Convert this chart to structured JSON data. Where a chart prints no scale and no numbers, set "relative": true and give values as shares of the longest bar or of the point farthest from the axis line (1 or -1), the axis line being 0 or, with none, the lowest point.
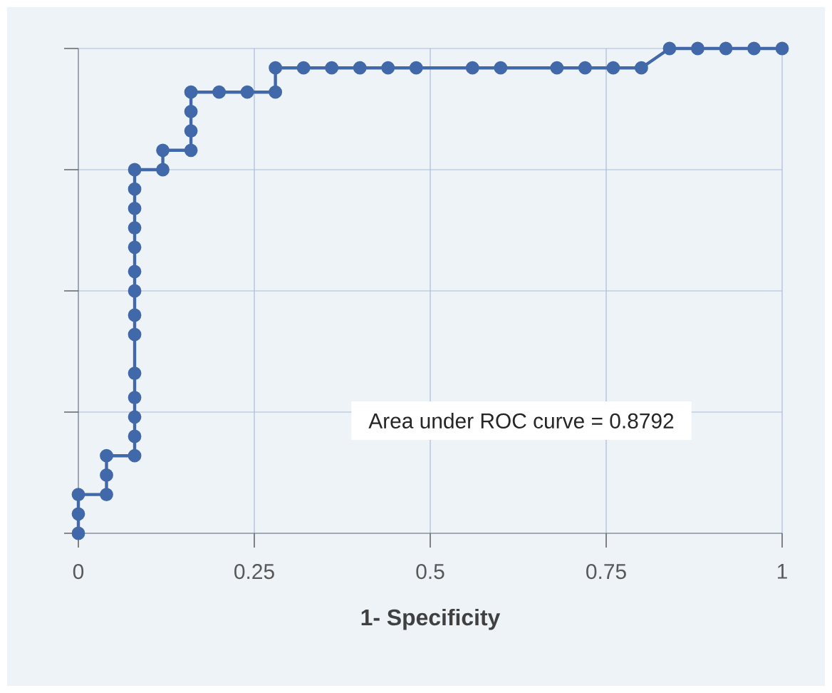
{
  "chart_data": {
    "type": "line",
    "xlabel": "1- Specificity",
    "relative": true,
    "xlim": [
      0,
      1
    ],
    "xticks": [
      0,
      0.25,
      0.5,
      0.75,
      1
    ],
    "tick_labels": "x",
    "grid": true,
    "marker": "circle",
    "line_style": "solid",
    "annotations": [
      "Area under ROC curve = 0.8792"
    ],
    "series": [
      {
        "color": "#4169aa",
        "x": [
          0,
          0,
          0,
          0.04,
          0.04,
          0.04,
          0.08,
          0.08,
          0.08,
          0.08,
          0.08,
          0.08,
          0.08,
          0.08,
          0.08,
          0.08,
          0.08,
          0.08,
          0.08,
          0.08,
          0.12,
          0.12,
          0.16,
          0.16,
          0.16,
          0.16,
          0.2,
          0.24,
          0.28,
          0.28,
          0.32,
          0.36,
          0.4,
          0.44,
          0.48,
          0.56,
          0.6,
          0.68,
          0.72,
          0.76,
          0.8,
          0.84,
          0.88,
          0.92,
          0.96,
          1
        ],
        "values": [
          0,
          0.04,
          0.08,
          0.08,
          0.12,
          0.16,
          0.16,
          0.2,
          0.24,
          0.28,
          0.33,
          0.41,
          0.45,
          0.5,
          0.54,
          0.59,
          0.63,
          0.67,
          0.71,
          0.75,
          0.75,
          0.79,
          0.79,
          0.83,
          0.87,
          0.91,
          0.91,
          0.91,
          0.91,
          0.96,
          0.96,
          0.96,
          0.96,
          0.96,
          0.96,
          0.96,
          0.96,
          0.96,
          0.96,
          0.96,
          0.96,
          1,
          1,
          1,
          1,
          1
        ]
      }
    ]
  }
}
